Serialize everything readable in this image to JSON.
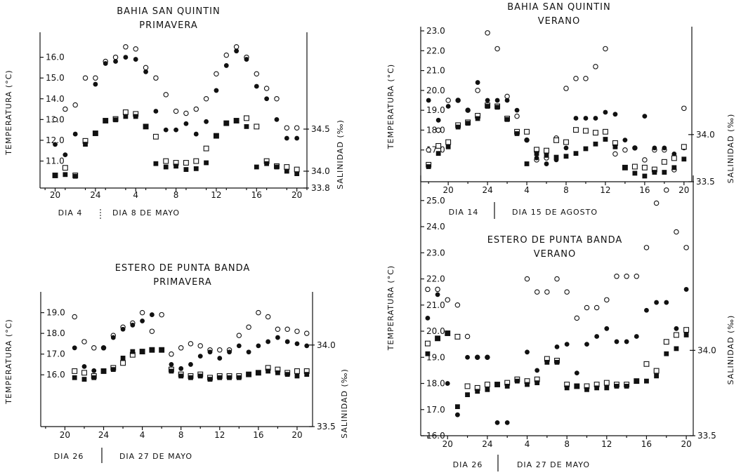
{
  "chart_data": [
    {
      "type": "scatter",
      "title": "BAHIA SAN QUINTIN",
      "subtitle": "PRIMAVERA",
      "ylabel": "TEMPERATURA (°C)",
      "y2label": "SALINIDAD (‰)",
      "xlabel_day1": "DIA 4",
      "xlabel_day2": "DIA 8 DE MAYO",
      "x_ticks": [
        "20",
        "24",
        "4",
        "8",
        "12",
        "16",
        "20"
      ],
      "y_ticks": [
        "11.0",
        "12.0",
        "13.0",
        "14.0",
        "15.0",
        "16.0"
      ],
      "y2_ticks": [
        "33.8",
        "34.0",
        "34.5"
      ],
      "ylim": [
        9.7,
        17.0
      ],
      "y2lim": [
        33.8,
        35.6
      ],
      "xlim": [
        18.5,
        45.0
      ],
      "grid": false,
      "series": [
        {
          "symbol": "open-circle",
          "axis": "temperature",
          "x": [
            20,
            21,
            22,
            23,
            24,
            25,
            26,
            27,
            28,
            29,
            30,
            31,
            32,
            33,
            34,
            35,
            36,
            37,
            38,
            39,
            40,
            41,
            42,
            43,
            44
          ],
          "y": [
            13.0,
            13.5,
            13.7,
            15.0,
            15.0,
            15.8,
            16.0,
            16.5,
            16.4,
            15.5,
            15.0,
            14.2,
            13.4,
            13.3,
            13.5,
            14.0,
            15.2,
            16.1,
            16.5,
            16.0,
            15.2,
            14.5,
            14.0,
            12.6,
            12.6
          ]
        },
        {
          "symbol": "filled-circle",
          "axis": "temperature",
          "x": [
            20,
            21,
            22,
            24,
            25,
            26,
            27,
            28,
            29,
            30,
            31,
            32,
            33,
            34,
            35,
            36,
            37,
            38,
            39,
            40,
            41,
            42,
            43,
            44
          ],
          "y": [
            11.8,
            11.3,
            12.3,
            14.7,
            15.7,
            15.8,
            16.0,
            15.9,
            15.3,
            13.4,
            12.5,
            12.5,
            12.8,
            12.3,
            12.9,
            14.4,
            15.6,
            16.3,
            15.9,
            14.6,
            14.0,
            13.0,
            12.1,
            12.1
          ]
        },
        {
          "symbol": "open-square",
          "axis": "salinity",
          "x": [
            20,
            21,
            22,
            23,
            24,
            25,
            26,
            27,
            28,
            29,
            30,
            31,
            32,
            33,
            34,
            35,
            36,
            37,
            38,
            39,
            40,
            41,
            42,
            43,
            44
          ],
          "y": [
            33.95,
            34.04,
            33.95,
            34.36,
            34.45,
            34.6,
            34.62,
            34.7,
            34.68,
            34.53,
            34.41,
            34.12,
            34.1,
            34.1,
            34.12,
            34.27,
            34.42,
            34.57,
            34.6,
            34.63,
            34.53,
            34.12,
            34.06,
            34.05,
            34.02
          ]
        },
        {
          "symbol": "filled-square",
          "axis": "salinity",
          "x": [
            20,
            21,
            22,
            23,
            24,
            25,
            26,
            27,
            28,
            29,
            30,
            31,
            32,
            33,
            34,
            35,
            36,
            37,
            38,
            39,
            40,
            41,
            42,
            43,
            44
          ],
          "y": [
            33.95,
            33.96,
            33.94,
            34.32,
            34.45,
            34.6,
            34.61,
            34.65,
            34.65,
            34.53,
            34.09,
            34.05,
            34.06,
            34.02,
            34.03,
            34.1,
            34.42,
            34.57,
            34.6,
            34.53,
            34.05,
            34.09,
            34.05,
            34.0,
            33.97
          ]
        }
      ]
    },
    {
      "type": "scatter",
      "title": "BAHIA SAN QUINTIN",
      "subtitle": "VERANO",
      "ylabel": "TEMPERATURA (°C)",
      "y2label": "SALINIDAD (‰)",
      "xlabel_day1": "DIA 14",
      "xlabel_day2": "DIA 15 DE AGOSTO",
      "x_ticks": [
        "20",
        "24",
        "4",
        "8",
        "12",
        "16",
        "20"
      ],
      "y_ticks": [
        "17.0",
        "18.0",
        "19.0",
        "20.0",
        "21.0",
        "22.0",
        "23.0"
      ],
      "y2_ticks": [
        "33.5",
        "34.0"
      ],
      "ylim": [
        15.4,
        23.0
      ],
      "y2lim": [
        33.5,
        35.1
      ],
      "xlim": [
        17.2,
        44.8
      ],
      "grid": false,
      "series": [
        {
          "symbol": "open-circle",
          "axis": "temperature",
          "x": [
            18,
            19,
            20,
            21,
            22,
            23,
            24,
            25,
            26,
            27,
            28,
            29,
            30,
            31,
            32,
            33,
            34,
            35,
            36,
            37,
            38,
            39,
            40,
            41,
            42,
            43,
            44
          ],
          "y": [
            17.0,
            18.0,
            19.5,
            19.5,
            19.0,
            20.0,
            22.9,
            22.1,
            19.7,
            18.7,
            17.5,
            16.5,
            16.6,
            17.6,
            20.1,
            20.6,
            20.6,
            21.2,
            22.1,
            16.8,
            17.0,
            17.1,
            16.5,
            17.0,
            17.0,
            16.0,
            19.1
          ]
        },
        {
          "symbol": "filled-circle",
          "axis": "temperature",
          "x": [
            18,
            19,
            20,
            21,
            22,
            23,
            24,
            25,
            26,
            27,
            28,
            29,
            30,
            31,
            32,
            33,
            34,
            35,
            36,
            37,
            38,
            39,
            40,
            41,
            42,
            43,
            44
          ],
          "y": [
            19.5,
            18.5,
            19.2,
            19.5,
            19.0,
            20.4,
            19.5,
            19.5,
            19.5,
            19.0,
            17.5,
            16.6,
            16.3,
            16.5,
            17.1,
            18.6,
            18.6,
            18.6,
            18.9,
            18.8,
            17.5,
            17.1,
            18.7,
            17.1,
            17.1,
            16.8,
            17.1
          ]
        },
        {
          "symbol": "open-square",
          "axis": "salinity",
          "x": [
            18,
            19,
            20,
            21,
            22,
            23,
            24,
            25,
            26,
            27,
            28,
            29,
            30,
            31,
            32,
            33,
            34,
            35,
            36,
            37,
            38,
            39,
            40,
            41,
            42,
            43,
            44
          ],
          "y": [
            33.68,
            33.88,
            33.92,
            34.1,
            34.13,
            34.2,
            34.31,
            34.3,
            34.17,
            34.03,
            34.03,
            33.84,
            33.83,
            33.94,
            33.92,
            34.05,
            34.04,
            34.02,
            34.03,
            33.91,
            33.65,
            33.66,
            33.65,
            33.63,
            33.71,
            33.75,
            33.87
          ]
        },
        {
          "symbol": "filled-square",
          "axis": "salinity",
          "x": [
            18,
            19,
            20,
            21,
            22,
            23,
            24,
            25,
            26,
            27,
            28,
            29,
            30,
            31,
            32,
            33,
            34,
            35,
            36,
            37,
            38,
            39,
            40,
            41,
            42,
            43,
            44
          ],
          "y": [
            33.66,
            33.8,
            33.87,
            34.08,
            34.12,
            34.17,
            34.3,
            34.29,
            34.16,
            34.01,
            33.69,
            33.8,
            33.78,
            33.76,
            33.77,
            33.8,
            33.85,
            33.9,
            33.95,
            33.87,
            33.65,
            33.59,
            33.56,
            33.6,
            33.6,
            33.65,
            33.74
          ]
        }
      ]
    },
    {
      "type": "scatter",
      "title": "ESTERO DE PUNTA BANDA",
      "subtitle": "PRIMAVERA",
      "ylabel": "TEMPERATURA (°C)",
      "y2label": "SALINIDAD (‰)",
      "xlabel_day1": "DIA 26",
      "xlabel_day2": "DIA 27 DE MAYO",
      "x_ticks": [
        "20",
        "24",
        "4",
        "8",
        "12",
        "16",
        "20"
      ],
      "y_ticks": [
        "16.0",
        "17.0",
        "18.0",
        "19.0"
      ],
      "y2_ticks": [
        "33.5",
        "34.0"
      ],
      "ylim": [
        13.5,
        19.8
      ],
      "y2lim": [
        33.5,
        34.3
      ],
      "xlim": [
        17.5,
        45.6
      ],
      "grid": false,
      "series": [
        {
          "symbol": "open-circle",
          "axis": "temperature",
          "x": [
            21,
            22,
            23,
            24,
            25,
            26,
            27,
            28,
            29,
            30,
            31,
            32,
            33,
            34,
            35,
            36,
            37,
            38,
            39,
            40,
            41,
            42,
            43,
            44,
            45
          ],
          "y": [
            18.8,
            17.6,
            17.3,
            17.3,
            17.9,
            18.3,
            18.5,
            19.0,
            18.1,
            18.9,
            17.0,
            17.3,
            17.5,
            17.4,
            17.2,
            17.2,
            17.2,
            17.9,
            18.3,
            19.0,
            18.8,
            18.2,
            18.2,
            18.1,
            18.0
          ]
        },
        {
          "symbol": "filled-circle",
          "axis": "temperature",
          "x": [
            21,
            22,
            23,
            24,
            25,
            26,
            27,
            28,
            29,
            31,
            32,
            33,
            34,
            35,
            36,
            37,
            38,
            39,
            40,
            41,
            42,
            43,
            44,
            45
          ],
          "y": [
            17.3,
            16.4,
            16.2,
            17.3,
            17.8,
            18.2,
            18.4,
            18.6,
            18.9,
            16.5,
            16.3,
            16.5,
            16.9,
            17.1,
            16.8,
            17.1,
            17.4,
            17.1,
            17.4,
            17.6,
            17.8,
            17.6,
            17.5,
            17.4
          ]
        },
        {
          "symbol": "open-square",
          "axis": "salinity",
          "x": [
            21,
            22,
            23,
            24,
            25,
            26,
            27,
            28,
            29,
            30,
            31,
            32,
            33,
            34,
            35,
            36,
            37,
            38,
            39,
            40,
            41,
            42,
            43,
            44,
            45
          ],
          "y": [
            33.84,
            33.83,
            33.81,
            33.84,
            33.86,
            33.89,
            33.94,
            33.96,
            33.97,
            33.97,
            33.85,
            33.82,
            33.81,
            33.82,
            33.8,
            33.81,
            33.81,
            33.81,
            33.82,
            33.83,
            33.86,
            33.85,
            33.83,
            33.84,
            33.84
          ]
        },
        {
          "symbol": "filled-square",
          "axis": "salinity",
          "x": [
            21,
            22,
            23,
            24,
            25,
            26,
            27,
            28,
            29,
            30,
            31,
            32,
            33,
            34,
            35,
            36,
            37,
            38,
            39,
            40,
            41,
            42,
            43,
            44,
            45
          ],
          "y": [
            33.8,
            33.79,
            33.8,
            33.84,
            33.85,
            33.92,
            33.96,
            33.96,
            33.97,
            33.97,
            33.84,
            33.81,
            33.8,
            33.81,
            33.79,
            33.8,
            33.8,
            33.8,
            33.82,
            33.83,
            33.84,
            33.83,
            33.82,
            33.81,
            33.82
          ]
        }
      ]
    },
    {
      "type": "scatter",
      "title": "ESTERO DE PUNTA BANDA",
      "subtitle": "VERANO",
      "ylabel": "TEMPERATURA (°C)",
      "y2label": "SALINIDAD (‰)",
      "xlabel_day1": "DIA 26",
      "xlabel_day2": "DIA 27 DE MAYO",
      "x_ticks": [
        "20",
        "24",
        "4",
        "8",
        "12",
        "16",
        "20"
      ],
      "y_ticks": [
        "16.0",
        "17.0",
        "18.0",
        "19.0",
        "20.0",
        "21.0",
        "22.0",
        "23.0",
        "24.0",
        "25.0"
      ],
      "y2_ticks": [
        "33.5",
        "34.0"
      ],
      "ylim": [
        16.0,
        25.8
      ],
      "y2lim": [
        33.5,
        35.0
      ],
      "xlim": [
        17.3,
        44.7
      ],
      "grid": false,
      "series": [
        {
          "symbol": "open-circle",
          "axis": "temperature",
          "x": [
            18,
            19,
            20,
            21,
            22,
            23,
            24,
            28,
            29,
            30,
            31,
            32,
            33,
            34,
            35,
            36,
            37,
            38,
            39,
            40,
            41,
            42,
            43,
            44
          ],
          "y": [
            21.6,
            21.6,
            21.2,
            21.0,
            19.8,
            19.0,
            19.0,
            22.0,
            21.5,
            21.5,
            22.0,
            21.5,
            20.5,
            20.9,
            20.9,
            21.2,
            22.1,
            22.1,
            22.1,
            23.2,
            24.9,
            25.4,
            23.8,
            23.2
          ]
        },
        {
          "symbol": "filled-circle",
          "axis": "temperature",
          "x": [
            18,
            19,
            20,
            21,
            22,
            23,
            24,
            25,
            26,
            28,
            29,
            30,
            31,
            32,
            33,
            34,
            35,
            36,
            37,
            38,
            39,
            40,
            41,
            42,
            43,
            44
          ],
          "y": [
            20.5,
            21.4,
            18.0,
            16.8,
            19.0,
            19.0,
            19.0,
            16.5,
            16.5,
            19.2,
            18.5,
            18.9,
            19.4,
            19.5,
            18.4,
            19.5,
            19.8,
            20.1,
            19.6,
            19.6,
            19.8,
            20.8,
            21.1,
            21.1,
            20.1,
            21.6
          ]
        },
        {
          "symbol": "open-square",
          "axis": "salinity",
          "x": [
            18,
            19,
            20,
            21,
            22,
            23,
            24,
            25,
            26,
            27,
            28,
            29,
            30,
            31,
            32,
            33,
            34,
            35,
            36,
            37,
            38,
            39,
            40,
            41,
            42,
            43,
            44
          ],
          "y": [
            34.04,
            34.07,
            34.1,
            34.08,
            33.79,
            33.78,
            33.8,
            33.8,
            33.81,
            33.83,
            33.82,
            33.83,
            33.95,
            33.94,
            33.8,
            33.79,
            33.79,
            33.8,
            33.81,
            33.8,
            33.8,
            33.82,
            33.92,
            33.88,
            34.05,
            34.09,
            34.12
          ]
        },
        {
          "symbol": "filled-square",
          "axis": "salinity",
          "x": [
            18,
            19,
            20,
            21,
            22,
            23,
            24,
            25,
            26,
            27,
            28,
            29,
            30,
            31,
            32,
            33,
            34,
            35,
            36,
            37,
            38,
            39,
            40,
            41,
            42,
            43,
            44
          ],
          "y": [
            33.98,
            34.07,
            34.1,
            33.67,
            33.74,
            33.76,
            33.77,
            33.8,
            33.79,
            33.82,
            33.8,
            33.81,
            33.93,
            33.93,
            33.78,
            33.79,
            33.77,
            33.78,
            33.78,
            33.79,
            33.79,
            33.82,
            33.82,
            33.85,
            33.98,
            34.01,
            34.09
          ]
        }
      ]
    }
  ]
}
